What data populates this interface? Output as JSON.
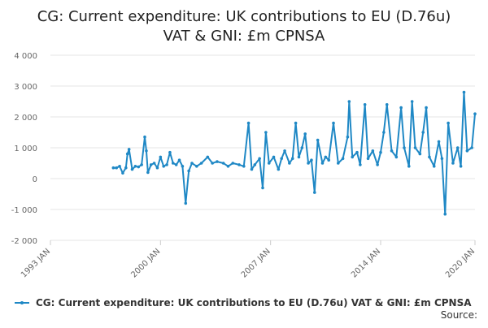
{
  "chart_data": {
    "type": "line",
    "title_lines": [
      "CG: Current expenditure: UK contributions to EU (D.76u)",
      "VAT & GNI: £m CPNSA"
    ],
    "xlabel": "",
    "ylabel": "",
    "ylim": [
      -2000,
      4000
    ],
    "yticks": [
      {
        "value": 4000,
        "label": "4 000"
      },
      {
        "value": 3000,
        "label": "3 000"
      },
      {
        "value": 2000,
        "label": "2 000"
      },
      {
        "value": 1000,
        "label": "1 000"
      },
      {
        "value": 0,
        "label": "0"
      },
      {
        "value": -1000,
        "label": "-1 000"
      },
      {
        "value": -2000,
        "label": "-2 000"
      }
    ],
    "xlim": [
      1993.0,
      2020.0
    ],
    "xticks": [
      {
        "value": 1993.0,
        "label": "1993 JAN"
      },
      {
        "value": 2000.0,
        "label": "2000 JAN"
      },
      {
        "value": 2007.0,
        "label": "2007 JAN"
      },
      {
        "value": 2014.0,
        "label": "2014 JAN"
      },
      {
        "value": 2020.0,
        "label": "2020 JAN"
      }
    ],
    "grid": true,
    "legend_position": "bottom",
    "series": [
      {
        "name": "CG: Current expenditure: UK contributions to EU (D.76u) VAT & GNI: £m CPNSA",
        "color": "#1f88c5",
        "points": [
          [
            1997.0,
            350
          ],
          [
            1997.2,
            350
          ],
          [
            1997.4,
            400
          ],
          [
            1997.6,
            180
          ],
          [
            1997.8,
            350
          ],
          [
            1997.9,
            800
          ],
          [
            1998.0,
            950
          ],
          [
            1998.2,
            300
          ],
          [
            1998.4,
            400
          ],
          [
            1998.6,
            380
          ],
          [
            1998.8,
            450
          ],
          [
            1999.0,
            1350
          ],
          [
            1999.1,
            900
          ],
          [
            1999.2,
            200
          ],
          [
            1999.4,
            450
          ],
          [
            1999.6,
            500
          ],
          [
            1999.8,
            350
          ],
          [
            2000.0,
            700
          ],
          [
            2000.2,
            400
          ],
          [
            2000.4,
            450
          ],
          [
            2000.6,
            850
          ],
          [
            2000.8,
            500
          ],
          [
            2001.0,
            450
          ],
          [
            2001.2,
            600
          ],
          [
            2001.4,
            400
          ],
          [
            2001.6,
            -800
          ],
          [
            2001.8,
            250
          ],
          [
            2002.0,
            500
          ],
          [
            2002.3,
            400
          ],
          [
            2002.6,
            500
          ],
          [
            2003.0,
            700
          ],
          [
            2003.3,
            500
          ],
          [
            2003.6,
            550
          ],
          [
            2004.0,
            500
          ],
          [
            2004.3,
            400
          ],
          [
            2004.6,
            500
          ],
          [
            2005.0,
            450
          ],
          [
            2005.3,
            400
          ],
          [
            2005.6,
            1800
          ],
          [
            2005.8,
            300
          ],
          [
            2006.0,
            450
          ],
          [
            2006.3,
            650
          ],
          [
            2006.5,
            -300
          ],
          [
            2006.7,
            1500
          ],
          [
            2006.9,
            500
          ],
          [
            2007.2,
            700
          ],
          [
            2007.5,
            300
          ],
          [
            2007.7,
            650
          ],
          [
            2007.9,
            900
          ],
          [
            2008.2,
            500
          ],
          [
            2008.4,
            650
          ],
          [
            2008.6,
            1800
          ],
          [
            2008.8,
            700
          ],
          [
            2009.0,
            1000
          ],
          [
            2009.2,
            1450
          ],
          [
            2009.4,
            500
          ],
          [
            2009.6,
            600
          ],
          [
            2009.8,
            -450
          ],
          [
            2010.0,
            1250
          ],
          [
            2010.3,
            500
          ],
          [
            2010.5,
            700
          ],
          [
            2010.7,
            600
          ],
          [
            2011.0,
            1800
          ],
          [
            2011.3,
            500
          ],
          [
            2011.6,
            650
          ],
          [
            2011.9,
            1350
          ],
          [
            2012.0,
            2500
          ],
          [
            2012.2,
            700
          ],
          [
            2012.5,
            850
          ],
          [
            2012.7,
            450
          ],
          [
            2013.0,
            2400
          ],
          [
            2013.2,
            650
          ],
          [
            2013.5,
            900
          ],
          [
            2013.8,
            450
          ],
          [
            2014.0,
            850
          ],
          [
            2014.2,
            1500
          ],
          [
            2014.4,
            2400
          ],
          [
            2014.7,
            900
          ],
          [
            2015.0,
            700
          ],
          [
            2015.3,
            2300
          ],
          [
            2015.5,
            1000
          ],
          [
            2015.8,
            400
          ],
          [
            2016.0,
            2500
          ],
          [
            2016.2,
            1000
          ],
          [
            2016.5,
            800
          ],
          [
            2016.7,
            1500
          ],
          [
            2016.9,
            2300
          ],
          [
            2017.1,
            700
          ],
          [
            2017.4,
            400
          ],
          [
            2017.7,
            1200
          ],
          [
            2017.9,
            650
          ],
          [
            2018.1,
            -1150
          ],
          [
            2018.3,
            1800
          ],
          [
            2018.6,
            500
          ],
          [
            2018.9,
            1000
          ],
          [
            2019.1,
            400
          ],
          [
            2019.3,
            2800
          ],
          [
            2019.5,
            900
          ],
          [
            2019.8,
            1000
          ],
          [
            2020.0,
            2100
          ]
        ]
      }
    ],
    "source_label": "Source:"
  }
}
